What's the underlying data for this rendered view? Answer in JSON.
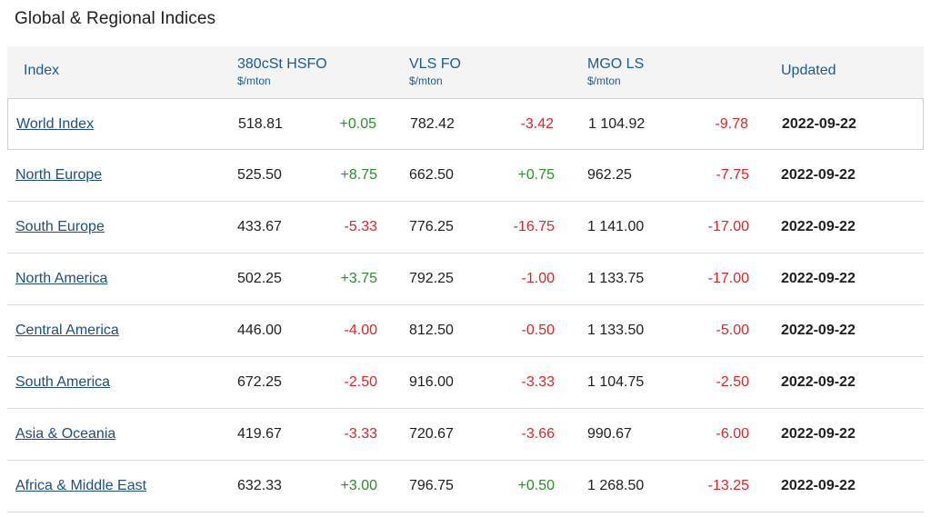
{
  "title": "Global & Regional Indices",
  "headers": {
    "index": "Index",
    "hsfo": "380cSt HSFO",
    "hsfo_unit": "$/mton",
    "vlsfo": "VLS FO",
    "vlsfo_unit": "$/mton",
    "mgo": "MGO LS",
    "mgo_unit": "$/mton",
    "updated": "Updated"
  },
  "colors": {
    "header_text": "#1e5a8c",
    "link": "#1e4e7a",
    "positive": "#2e8b2e",
    "negative": "#e02424"
  },
  "rows": [
    {
      "name": "World Index",
      "hsfo": "518.81",
      "hsfo_chg": "+0.05",
      "vlsfo": "782.42",
      "vlsfo_chg": "-3.42",
      "mgo": "1 104.92",
      "mgo_chg": "-9.78",
      "updated": "2022-09-22"
    },
    {
      "name": "North Europe",
      "hsfo": "525.50",
      "hsfo_chg": "+8.75",
      "vlsfo": "662.50",
      "vlsfo_chg": "+0.75",
      "mgo": "962.25",
      "mgo_chg": "-7.75",
      "updated": "2022-09-22"
    },
    {
      "name": "South Europe",
      "hsfo": "433.67",
      "hsfo_chg": "-5.33",
      "vlsfo": "776.25",
      "vlsfo_chg": "-16.75",
      "mgo": "1 141.00",
      "mgo_chg": "-17.00",
      "updated": "2022-09-22"
    },
    {
      "name": "North America",
      "hsfo": "502.25",
      "hsfo_chg": "+3.75",
      "vlsfo": "792.25",
      "vlsfo_chg": "-1.00",
      "mgo": "1 133.75",
      "mgo_chg": "-17.00",
      "updated": "2022-09-22"
    },
    {
      "name": "Central America",
      "hsfo": "446.00",
      "hsfo_chg": "-4.00",
      "vlsfo": "812.50",
      "vlsfo_chg": "-0.50",
      "mgo": "1 133.50",
      "mgo_chg": "-5.00",
      "updated": "2022-09-22"
    },
    {
      "name": "South America",
      "hsfo": "672.25",
      "hsfo_chg": "-2.50",
      "vlsfo": "916.00",
      "vlsfo_chg": "-3.33",
      "mgo": "1 104.75",
      "mgo_chg": "-2.50",
      "updated": "2022-09-22"
    },
    {
      "name": "Asia & Oceania",
      "hsfo": "419.67",
      "hsfo_chg": "-3.33",
      "vlsfo": "720.67",
      "vlsfo_chg": "-3.66",
      "mgo": "990.67",
      "mgo_chg": "-6.00",
      "updated": "2022-09-22"
    },
    {
      "name": "Africa & Middle East",
      "hsfo": "632.33",
      "hsfo_chg": "+3.00",
      "vlsfo": "796.75",
      "vlsfo_chg": "+0.50",
      "mgo": "1 268.50",
      "mgo_chg": "-13.25",
      "updated": "2022-09-22"
    }
  ]
}
